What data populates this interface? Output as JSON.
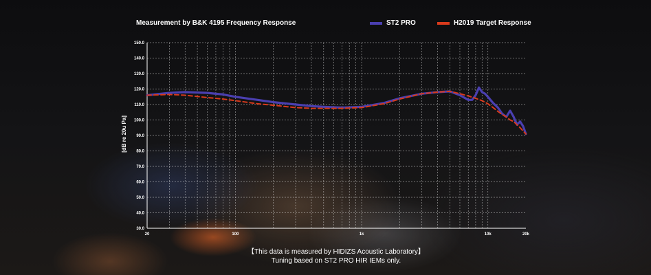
{
  "chart_data": {
    "type": "line",
    "title": "Measurement by B&K 4195    Frequency Response",
    "ylabel": "[dB re 20u Pa]",
    "xscale": "log",
    "xlim": [
      20,
      20000
    ],
    "ylim": [
      30,
      150
    ],
    "grid": true,
    "legend_position": "top-right",
    "y_ticks": [
      "30.0",
      "40.0",
      "50.0",
      "60.0",
      "70.0",
      "80.0",
      "90.0",
      "100.0",
      "110.0",
      "120.0",
      "130.0",
      "140.0",
      "150.0"
    ],
    "y_tick_values": [
      30,
      40,
      50,
      60,
      70,
      80,
      90,
      100,
      110,
      120,
      130,
      140,
      150
    ],
    "x_ticks": [
      "20",
      "100",
      "1k",
      "10k",
      "20k"
    ],
    "x_tick_values": [
      20,
      100,
      1000,
      10000,
      20000
    ],
    "series": [
      {
        "name": "ST2 PRO",
        "color": "#4a3fb0",
        "dash": "solid",
        "x": [
          20,
          30,
          40,
          60,
          80,
          100,
          150,
          200,
          300,
          400,
          500,
          700,
          1000,
          1500,
          2000,
          3000,
          4000,
          5000,
          6000,
          7000,
          7500,
          8000,
          8500,
          9000,
          9500,
          10000,
          11000,
          12000,
          13000,
          14000,
          15000,
          16000,
          17000,
          18000,
          19000,
          20000
        ],
        "y": [
          116,
          117.5,
          118,
          117.5,
          116.5,
          115,
          113,
          111.5,
          110,
          109,
          108.5,
          108,
          108.5,
          111,
          114,
          117,
          118,
          118.5,
          116,
          113,
          113,
          116,
          121,
          118,
          117,
          115,
          111,
          108,
          104,
          102,
          106,
          102,
          97,
          99,
          96,
          91
        ]
      },
      {
        "name": "H2019 Target Response",
        "color": "#d83a1c",
        "dash": "dashed",
        "x": [
          20,
          30,
          40,
          60,
          80,
          100,
          150,
          200,
          300,
          400,
          500,
          700,
          1000,
          1500,
          2000,
          3000,
          4000,
          5000,
          6000,
          7000,
          8000,
          9000,
          10000,
          11000,
          12000,
          13000,
          14000,
          15000,
          16000,
          17000,
          18000,
          20000
        ],
        "y": [
          116,
          116.5,
          116,
          114.5,
          113.5,
          112.5,
          110.5,
          109.5,
          108,
          107.5,
          107.5,
          107.5,
          108,
          110.5,
          113.5,
          117,
          118,
          118.5,
          117,
          115.5,
          114,
          112.5,
          110.5,
          108,
          105.5,
          103.5,
          102,
          100,
          99,
          97,
          95,
          91
        ]
      }
    ]
  },
  "legend": {
    "st2_label": "ST2 PRO",
    "target_label": "H2019 Target Response"
  },
  "footer": {
    "line1": "【This data is measured by HIDIZS Acoustic Laboratory】",
    "line2": "Tuning based on ST2 PRO HIR IEMs only."
  }
}
